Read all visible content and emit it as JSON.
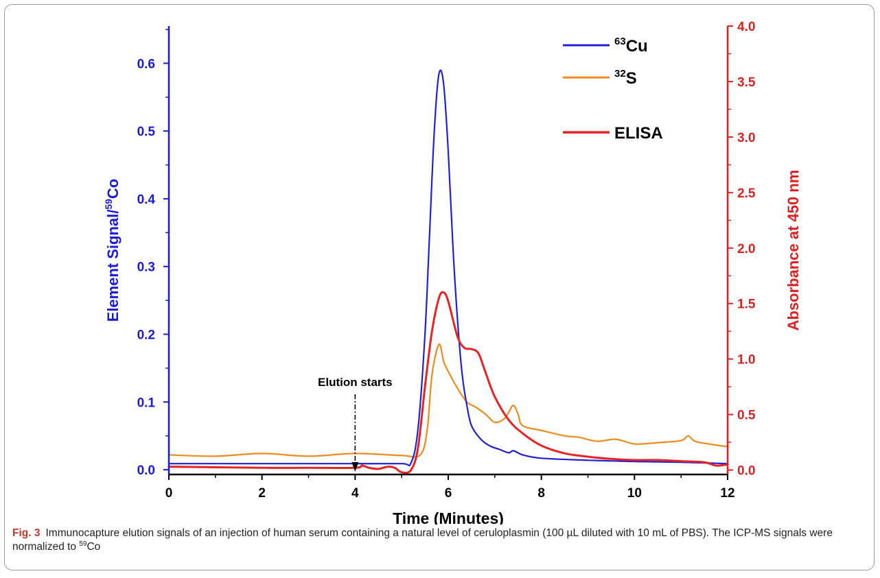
{
  "figure": {
    "caption_label": "Fig. 3",
    "caption_text": "Immunocapture elution signals of an injection of human serum containing a natural level of ceruloplasmin (100 µL diluted with 10 mL of PBS). The ICP-MS signals were normalized to ",
    "caption_sup": "59",
    "caption_end": "Co"
  },
  "chart_data": {
    "type": "line",
    "xlabel": "Time (Minutes)",
    "ylabel_left_pre": "Element Signal/",
    "ylabel_left_sup": "59",
    "ylabel_left_post": "Co",
    "ylabel_right": "Absorbance at 450 nm",
    "xlim": [
      0,
      12
    ],
    "ylim_left": [
      -0.007,
      0.655
    ],
    "ylim_right": [
      -0.04,
      4.0
    ],
    "x_ticks": [
      0,
      2,
      4,
      6,
      8,
      10,
      12
    ],
    "x_tick_labels": [
      "0",
      "2",
      "4",
      "6",
      "8",
      "10",
      "12"
    ],
    "y_left_ticks": [
      0.0,
      0.1,
      0.2,
      0.3,
      0.4,
      0.5,
      0.6
    ],
    "y_left_tick_labels": [
      "0.0",
      "0.1",
      "0.2",
      "0.3",
      "0.4",
      "0.5",
      "0.6"
    ],
    "y_right_ticks": [
      0.0,
      0.5,
      1.0,
      1.5,
      2.0,
      2.5,
      3.0,
      3.5,
      4.0
    ],
    "y_right_tick_labels": [
      "0.0",
      "0.5",
      "1.0",
      "1.5",
      "2.0",
      "2.5",
      "3.0",
      "3.5",
      "4.0"
    ],
    "left_axis_color": "#1a1adb",
    "right_axis_color": "#e02020",
    "grid": false,
    "legend_position": "top-right",
    "annotation": {
      "text": "Elution starts",
      "x": 4.0
    },
    "series": [
      {
        "name_sup": "63",
        "name_main": "Cu",
        "color": "#1f1fd6",
        "axis": "left",
        "x": [
          0,
          1,
          2,
          3,
          4,
          5,
          5.2,
          5.35,
          5.5,
          5.6,
          5.7,
          5.8,
          5.9,
          6.0,
          6.1,
          6.2,
          6.3,
          6.4,
          6.5,
          6.7,
          6.9,
          7.1,
          7.3,
          7.4,
          7.6,
          8.0,
          9.0,
          10.0,
          11.0,
          12.0
        ],
        "y": [
          0.009,
          0.009,
          0.009,
          0.009,
          0.009,
          0.009,
          0.01,
          0.06,
          0.2,
          0.35,
          0.5,
          0.584,
          0.57,
          0.47,
          0.33,
          0.22,
          0.14,
          0.095,
          0.065,
          0.045,
          0.035,
          0.03,
          0.025,
          0.028,
          0.022,
          0.017,
          0.014,
          0.012,
          0.011,
          0.009
        ]
      },
      {
        "name_sup": "32",
        "name_main": "S",
        "color": "#f08a1c",
        "axis": "left",
        "x": [
          0,
          1,
          2,
          3,
          4,
          5,
          5.4,
          5.55,
          5.65,
          5.8,
          5.9,
          6.0,
          6.2,
          6.4,
          6.6,
          6.8,
          7.0,
          7.2,
          7.3,
          7.4,
          7.5,
          7.6,
          8.0,
          8.5,
          8.8,
          9.2,
          9.6,
          10.0,
          10.5,
          11.0,
          11.15,
          11.3,
          11.6,
          12.0
        ],
        "y": [
          0.022,
          0.02,
          0.024,
          0.02,
          0.024,
          0.021,
          0.022,
          0.06,
          0.14,
          0.185,
          0.16,
          0.145,
          0.12,
          0.1,
          0.092,
          0.082,
          0.07,
          0.075,
          0.085,
          0.095,
          0.082,
          0.065,
          0.058,
          0.05,
          0.048,
          0.042,
          0.045,
          0.038,
          0.04,
          0.043,
          0.05,
          0.042,
          0.038,
          0.034
        ]
      },
      {
        "name": "ELISA",
        "color": "#e52323",
        "axis": "right",
        "x": [
          0,
          1,
          2,
          3,
          4,
          4.15,
          4.3,
          4.5,
          4.7,
          4.85,
          5.0,
          5.2,
          5.35,
          5.5,
          5.65,
          5.8,
          5.9,
          6.0,
          6.2,
          6.35,
          6.5,
          6.65,
          6.8,
          7.0,
          7.3,
          7.6,
          8.0,
          8.5,
          9.0,
          9.5,
          10.0,
          10.5,
          11.0,
          11.5,
          11.75,
          12.0
        ],
        "y": [
          0.03,
          0.025,
          0.02,
          0.02,
          0.02,
          0.04,
          0.02,
          0.01,
          0.03,
          0.02,
          -0.02,
          0.0,
          0.2,
          0.75,
          1.25,
          1.55,
          1.6,
          1.52,
          1.2,
          1.1,
          1.09,
          1.05,
          0.88,
          0.66,
          0.45,
          0.33,
          0.22,
          0.15,
          0.12,
          0.1,
          0.09,
          0.09,
          0.08,
          0.07,
          0.04,
          0.05
        ]
      }
    ]
  }
}
